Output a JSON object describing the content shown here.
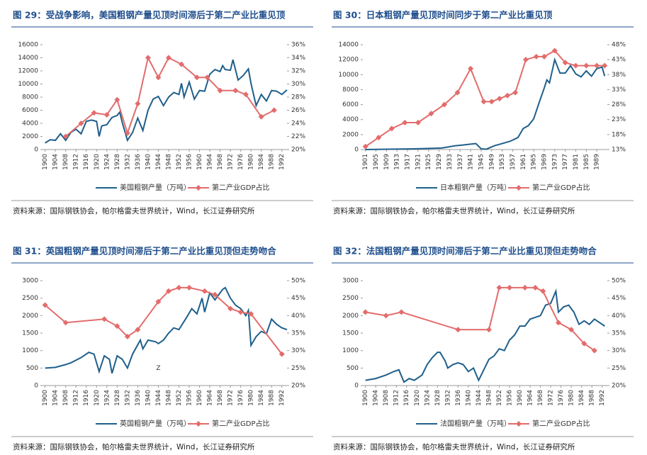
{
  "chart_data": [
    {
      "type": "line",
      "title": "图 29：受战争影响，美国粗钢产量见顶时间滞后于第二产业比重见顶",
      "source": "资料来源：国际钢铁协会，帕尔格雷夫世界统计，Wind，长江证券研究所",
      "xlim": [
        1899,
        1994
      ],
      "xticks": [
        1900,
        1904,
        1908,
        1912,
        1916,
        1920,
        1924,
        1928,
        1932,
        1936,
        1940,
        1944,
        1948,
        1952,
        1956,
        1960,
        1964,
        1968,
        1972,
        1976,
        1980,
        1984,
        1988,
        1992
      ],
      "ylim": [
        0,
        16000
      ],
      "yticks": [
        0,
        2000,
        4000,
        6000,
        8000,
        10000,
        12000,
        14000,
        16000
      ],
      "y2lim": [
        20,
        36
      ],
      "y2ticks": [
        {
          "value": 20,
          "label": "20%"
        },
        {
          "value": 22,
          "label": "22%"
        },
        {
          "value": 24,
          "label": "24%"
        },
        {
          "value": 26,
          "label": "26%"
        },
        {
          "value": 28,
          "label": "28%"
        },
        {
          "value": 30,
          "label": "30%"
        },
        {
          "value": 32,
          "label": "32%"
        },
        {
          "value": 34,
          "label": "34%"
        },
        {
          "value": 36,
          "label": "36%"
        }
      ],
      "series": [
        {
          "name": "美国粗钢产量（万吨）",
          "color": "#1f5f8b",
          "x": [
            1900,
            1902,
            1904,
            1906,
            1908,
            1910,
            1912,
            1914,
            1916,
            1918,
            1920,
            1921,
            1922,
            1924,
            1926,
            1928,
            1929,
            1930,
            1932,
            1934,
            1936,
            1938,
            1940,
            1942,
            1944,
            1946,
            1948,
            1950,
            1952,
            1953,
            1954,
            1956,
            1958,
            1960,
            1962,
            1964,
            1966,
            1968,
            1969,
            1970,
            1972,
            1973,
            1975,
            1977,
            1979,
            1980,
            1982,
            1984,
            1986,
            1988,
            1990,
            1992,
            1994
          ],
          "values": [
            1000,
            1500,
            1400,
            2400,
            1400,
            2600,
            3100,
            2400,
            4300,
            4500,
            4300,
            2000,
            3600,
            3800,
            4900,
            5200,
            5700,
            4100,
            1400,
            2600,
            4800,
            2900,
            6000,
            7700,
            8100,
            6700,
            8000,
            8700,
            8400,
            10100,
            8000,
            10300,
            7700,
            9000,
            8900,
            11500,
            12200,
            11900,
            12800,
            12200,
            12100,
            13700,
            10600,
            11300,
            12300,
            10100,
            6700,
            8400,
            7400,
            9000,
            8900,
            8400,
            9100
          ]
        },
        {
          "name": "第二产业GDP占比",
          "color": "#e36c6c",
          "axis": "y2",
          "marker": "diamond",
          "x": [
            1908,
            1914,
            1919,
            1924,
            1928,
            1932,
            1936,
            1940,
            1944,
            1948,
            1953,
            1959,
            1963,
            1968,
            1974,
            1978,
            1984,
            1989
          ],
          "values": [
            22,
            24,
            25.6,
            25.3,
            27.6,
            22.5,
            27,
            34,
            31,
            34,
            33,
            31,
            31,
            29,
            29,
            28.4,
            25,
            26
          ]
        }
      ]
    },
    {
      "type": "line",
      "title": "图 30：日本粗钢产量见顶时间同步于第二产业比重见顶",
      "source": "资料来源：国际钢铁协会，帕尔格雷夫世界统计，Wind，长江证券研究所",
      "xlim": [
        1900,
        1993
      ],
      "xticks": [
        1901,
        1905,
        1909,
        1913,
        1917,
        1921,
        1925,
        1929,
        1933,
        1937,
        1941,
        1945,
        1949,
        1953,
        1957,
        1961,
        1965,
        1969,
        1973,
        1977,
        1981,
        1985,
        1989
      ],
      "ylim": [
        0,
        14000
      ],
      "yticks": [
        0,
        2000,
        4000,
        6000,
        8000,
        10000,
        12000,
        14000
      ],
      "y2lim": [
        13,
        48
      ],
      "y2ticks": [
        {
          "value": 13,
          "label": "13%"
        },
        {
          "value": 18,
          "label": "18%"
        },
        {
          "value": 23,
          "label": "23%"
        },
        {
          "value": 28,
          "label": "28%"
        },
        {
          "value": 33,
          "label": "33%"
        },
        {
          "value": 38,
          "label": "38%"
        },
        {
          "value": 43,
          "label": "43%"
        },
        {
          "value": 48,
          "label": "48%"
        }
      ],
      "series": [
        {
          "name": "日本粗钢产量（万吨）",
          "color": "#1f5f8b",
          "x": [
            1901,
            1910,
            1920,
            1930,
            1935,
            1938,
            1943,
            1945,
            1947,
            1950,
            1953,
            1956,
            1959,
            1961,
            1963,
            1965,
            1967,
            1969,
            1970,
            1971,
            1973,
            1975,
            1977,
            1979,
            1981,
            1983,
            1985,
            1987,
            1989,
            1991,
            1992
          ],
          "values": [
            0,
            50,
            100,
            200,
            500,
            600,
            800,
            100,
            50,
            500,
            800,
            1100,
            1600,
            2800,
            3200,
            4100,
            6200,
            8200,
            9300,
            8900,
            12000,
            10200,
            10200,
            11200,
            10100,
            9700,
            10500,
            9800,
            10800,
            11000,
            9800
          ]
        },
        {
          "name": "第二产业GDP占比",
          "color": "#e36c6c",
          "axis": "y2",
          "marker": "diamond",
          "x": [
            1901,
            1906,
            1911,
            1916,
            1921,
            1926,
            1931,
            1936,
            1941,
            1946,
            1949,
            1952,
            1955,
            1958,
            1962,
            1966,
            1969,
            1973,
            1977,
            1981,
            1985,
            1989,
            1992
          ],
          "values": [
            14,
            17,
            20,
            22,
            22,
            25,
            28,
            32,
            40,
            29,
            29,
            30,
            31,
            32,
            43,
            44,
            44,
            46,
            42,
            41,
            41,
            41,
            41
          ]
        }
      ]
    },
    {
      "type": "line",
      "title": "图 31：英国粗钢产量见顶时间滞后于第二产业比重见顶但走势吻合",
      "source": "资料来源：国际钢铁协会，帕尔格雷夫世界统计，Wind，长江证券研究所",
      "annotations": [
        {
          "text": "Z",
          "x": 1944,
          "y": 500
        }
      ],
      "xlim": [
        1899,
        1994
      ],
      "xticks": [
        1900,
        1904,
        1908,
        1912,
        1916,
        1920,
        1924,
        1928,
        1932,
        1936,
        1940,
        1944,
        1948,
        1952,
        1956,
        1960,
        1964,
        1968,
        1972,
        1976,
        1980,
        1984,
        1988,
        1992
      ],
      "ylim": [
        0,
        3000
      ],
      "yticks": [
        0,
        500,
        1000,
        1500,
        2000,
        2500,
        3000
      ],
      "y2lim": [
        20,
        50
      ],
      "y2ticks": [
        {
          "value": 20,
          "label": "20%"
        },
        {
          "value": 25,
          "label": "25%"
        },
        {
          "value": 30,
          "label": "30%"
        },
        {
          "value": 35,
          "label": "35%"
        },
        {
          "value": 40,
          "label": "40%"
        },
        {
          "value": 45,
          "label": "45%"
        },
        {
          "value": 50,
          "label": "50%"
        }
      ],
      "series": [
        {
          "name": "英国粗钢产量（万吨）",
          "color": "#1f5f8b",
          "x": [
            1900,
            1904,
            1908,
            1910,
            1914,
            1917,
            1919,
            1921,
            1923,
            1925,
            1926,
            1928,
            1930,
            1932,
            1934,
            1937,
            1938,
            1940,
            1943,
            1944,
            1946,
            1948,
            1950,
            1952,
            1955,
            1957,
            1959,
            1961,
            1962,
            1964,
            1966,
            1968,
            1969,
            1970,
            1972,
            1974,
            1976,
            1978,
            1979,
            1980,
            1982,
            1984,
            1986,
            1988,
            1990,
            1992,
            1994
          ],
          "values": [
            500,
            520,
            600,
            650,
            800,
            950,
            900,
            400,
            850,
            750,
            350,
            850,
            750,
            500,
            900,
            1300,
            1050,
            1300,
            1250,
            1200,
            1300,
            1500,
            1650,
            1600,
            1950,
            2200,
            2050,
            2500,
            2100,
            2650,
            2450,
            2650,
            2750,
            2800,
            2500,
            2300,
            2200,
            2000,
            2150,
            1150,
            1400,
            1550,
            1480,
            1900,
            1750,
            1650,
            1600
          ]
        },
        {
          "name": "第二产业GDP占比",
          "color": "#e36c6c",
          "axis": "y2",
          "marker": "diamond",
          "x": [
            1900,
            1908,
            1923,
            1928,
            1932,
            1936,
            1944,
            1948,
            1952,
            1956,
            1962,
            1966,
            1972,
            1976,
            1980,
            1992
          ],
          "values": [
            43,
            38,
            39,
            37,
            34,
            36,
            44,
            47,
            48,
            48,
            47,
            46,
            42,
            41,
            40.5,
            29
          ]
        }
      ]
    },
    {
      "type": "line",
      "title": "图 32：法国粗钢产量见顶时间滞后于第二产业比重见顶但走势吻合",
      "source": "资料来源：国际钢铁协会，帕尔格雷夫世界统计，Wind，长江证券研究所",
      "xlim": [
        1899,
        1994
      ],
      "xticks": [
        1900,
        1904,
        1908,
        1912,
        1916,
        1920,
        1924,
        1928,
        1932,
        1936,
        1940,
        1944,
        1948,
        1952,
        1956,
        1960,
        1964,
        1968,
        1972,
        1976,
        1980,
        1984,
        1988,
        1992
      ],
      "ylim": [
        0,
        3000
      ],
      "yticks": [
        0,
        500,
        1000,
        1500,
        2000,
        2500,
        3000
      ],
      "y2lim": [
        20,
        50
      ],
      "y2ticks": [
        {
          "value": 20,
          "label": "20%"
        },
        {
          "value": 25,
          "label": "25%"
        },
        {
          "value": 30,
          "label": "30%"
        },
        {
          "value": 35,
          "label": "35%"
        },
        {
          "value": 40,
          "label": "40%"
        },
        {
          "value": 45,
          "label": "45%"
        },
        {
          "value": 50,
          "label": "50%"
        }
      ],
      "series": [
        {
          "name": "法国粗钢产量（万吨）",
          "color": "#1f5f8b",
          "x": [
            1900,
            1904,
            1908,
            1911,
            1913,
            1915,
            1917,
            1919,
            1922,
            1924,
            1926,
            1928,
            1929,
            1931,
            1932,
            1934,
            1936,
            1938,
            1940,
            1942,
            1944,
            1946,
            1948,
            1950,
            1952,
            1954,
            1956,
            1958,
            1960,
            1962,
            1964,
            1966,
            1968,
            1970,
            1972,
            1974,
            1975,
            1977,
            1979,
            1981,
            1983,
            1985,
            1987,
            1989,
            1991,
            1993
          ],
          "values": [
            150,
            200,
            300,
            400,
            450,
            100,
            200,
            150,
            300,
            600,
            800,
            950,
            950,
            700,
            500,
            600,
            650,
            600,
            400,
            500,
            150,
            450,
            750,
            850,
            1050,
            1000,
            1300,
            1450,
            1700,
            1700,
            1900,
            1950,
            2000,
            2300,
            2350,
            2700,
            2100,
            2250,
            2300,
            2100,
            1750,
            1850,
            1750,
            1900,
            1800,
            1700
          ]
        },
        {
          "name": "第二产业GDP占比",
          "color": "#e36c6c",
          "axis": "y2",
          "marker": "diamond",
          "x": [
            1900,
            1908,
            1914,
            1936,
            1948,
            1952,
            1956,
            1962,
            1966,
            1969,
            1975,
            1980,
            1985,
            1989
          ],
          "values": [
            41,
            40,
            41,
            36,
            36,
            48,
            48,
            48,
            48,
            47,
            38,
            36,
            32,
            30
          ]
        }
      ]
    }
  ]
}
